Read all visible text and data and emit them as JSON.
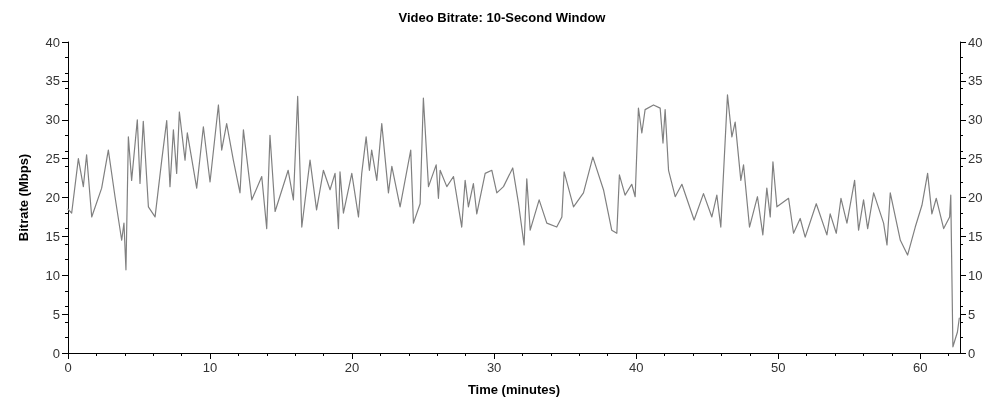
{
  "chart_data": {
    "type": "line",
    "title": "Video Bitrate: 10-Second Window",
    "xlabel": "Time (minutes)",
    "ylabel": "Bitrate (Mbps)",
    "x": [
      0,
      0.26,
      0.73,
      1.08,
      1.31,
      1.67,
      2.37,
      2.84,
      3.31,
      3.78,
      3.94,
      4.08,
      4.25,
      4.48,
      4.88,
      5.07,
      5.3,
      5.66,
      6.13,
      6.6,
      6.95,
      7.18,
      7.42,
      7.65,
      7.84,
      8.24,
      8.4,
      9.06,
      9.53,
      10,
      10.59,
      10.82,
      11.17,
      11.64,
      12.11,
      12.35,
      12.94,
      13.64,
      13.99,
      14.22,
      14.58,
      15.5,
      15.87,
      16.17,
      16.46,
      17.04,
      17.5,
      17.98,
      18.45,
      18.8,
      19.04,
      19.15,
      19.39,
      19.98,
      20.45,
      20.68,
      20.99,
      21.22,
      21.38,
      21.74,
      22.09,
      22.56,
      22.8,
      23.38,
      24.13,
      24.32,
      24.79,
      25.02,
      25.38,
      25.92,
      26.08,
      26.2,
      26.67,
      27.14,
      27.72,
      27.96,
      28.19,
      28.54,
      28.78,
      29.37,
      29.84,
      30.19,
      30.66,
      31.31,
      31.72,
      32.11,
      32.3,
      32.54,
      33.17,
      33.71,
      34.41,
      34.77,
      34.93,
      35.59,
      36.29,
      36.95,
      37.7,
      38.28,
      38.64,
      38.82,
      39.22,
      39.69,
      39.93,
      40.16,
      40.4,
      40.63,
      41.22,
      41.69,
      41.89,
      42.04,
      42.28,
      42.75,
      43.22,
      44.08,
      44.74,
      45.33,
      45.68,
      45.96,
      46.43,
      46.74,
      46.97,
      47.37,
      47.56,
      47.98,
      48.54,
      48.92,
      49.2,
      49.44,
      49.63,
      49.91,
      50.73,
      51.08,
      51.55,
      51.9,
      52.68,
      53.43,
      53.66,
      54.09,
      54.42,
      54.84,
      55.38,
      55.66,
      56.01,
      56.3,
      56.72,
      57.42,
      57.66,
      57.89,
      58.6,
      59.11,
      59.65,
      60.12,
      60.52,
      60.82,
      61.13,
      61.65,
      62.07,
      62.15,
      62.3,
      62.62,
      62.75
    ],
    "series": [
      {
        "color": "#808080",
        "values": [
          18.5,
          18,
          25,
          21.4,
          25.5,
          17.5,
          21.2,
          26.1,
          20.1,
          14.5,
          16.7,
          10.7,
          27.8,
          22.2,
          30,
          21.8,
          29.8,
          18.8,
          17.5,
          24.8,
          29.9,
          21.4,
          28.7,
          23.1,
          31,
          24.8,
          28.3,
          21.2,
          29.1,
          22,
          31.9,
          26.1,
          29.5,
          24.8,
          20.6,
          28.7,
          19.7,
          22.7,
          16,
          28,
          18.2,
          23.5,
          19.7,
          33,
          16.2,
          24.8,
          18.4,
          23.5,
          21,
          23.1,
          16,
          23.3,
          18,
          23.1,
          17.5,
          23.1,
          27.8,
          23.5,
          26.1,
          22.2,
          29.5,
          20.6,
          24,
          18.8,
          26.1,
          16.7,
          19.2,
          32.8,
          21.4,
          24.2,
          19.9,
          23.5,
          21.4,
          22.7,
          16.2,
          22.2,
          18.8,
          21.8,
          17.9,
          23.1,
          23.5,
          20.6,
          21.4,
          23.8,
          19.2,
          13.9,
          22.4,
          15.8,
          19.7,
          16.7,
          16.2,
          17.5,
          23.3,
          18.8,
          20.6,
          25.2,
          21,
          15.8,
          15.4,
          22.9,
          20.3,
          21.7,
          20.1,
          31.5,
          28.3,
          31.3,
          31.9,
          31.5,
          27,
          31.3,
          23.5,
          20.1,
          21.7,
          17.1,
          20.5,
          17.5,
          20.3,
          16.2,
          33.2,
          27.8,
          29.7,
          22.2,
          24.2,
          16.2,
          20.1,
          15.2,
          21.2,
          17.5,
          24.6,
          18.8,
          19.9,
          15.4,
          17.3,
          14.9,
          19.2,
          15.2,
          17.9,
          15.4,
          19.9,
          16.7,
          22.2,
          15.8,
          19.7,
          16,
          20.6,
          16.7,
          13.9,
          20.6,
          14.5,
          12.6,
          16.2,
          19,
          23.1,
          17.9,
          19.9,
          16,
          17.5,
          20.3,
          0.8,
          2.7,
          4.5
        ]
      }
    ],
    "xlim": [
      0,
      62.8
    ],
    "xticks": [
      0,
      10,
      20,
      30,
      40,
      50,
      60
    ],
    "ylim": [
      0,
      40
    ],
    "yticks": [
      0,
      5,
      10,
      15,
      20,
      25,
      30,
      35,
      40
    ],
    "y2lim": [
      0,
      40
    ],
    "y2ticks": [
      0,
      5,
      10,
      15,
      20,
      25,
      30,
      35,
      40
    ],
    "grid": false,
    "marker": "none",
    "line_style": "solid"
  }
}
